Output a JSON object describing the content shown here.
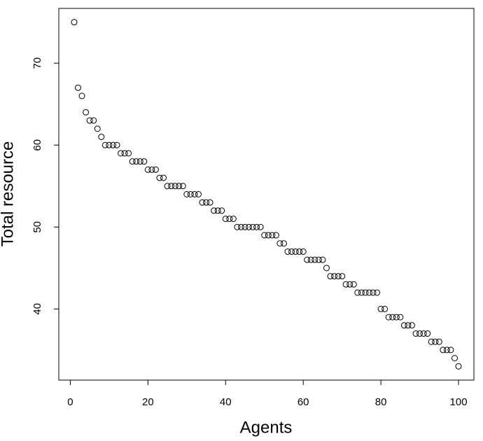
{
  "chart_data": {
    "type": "scatter",
    "x_label": "Agents",
    "y_label": "Total resource",
    "x": [
      1,
      2,
      3,
      4,
      5,
      6,
      7,
      8,
      9,
      10,
      11,
      12,
      13,
      14,
      15,
      16,
      17,
      18,
      19,
      20,
      21,
      22,
      23,
      24,
      25,
      26,
      27,
      28,
      29,
      30,
      31,
      32,
      33,
      34,
      35,
      36,
      37,
      38,
      39,
      40,
      41,
      42,
      43,
      44,
      45,
      46,
      47,
      48,
      49,
      50,
      51,
      52,
      53,
      54,
      55,
      56,
      57,
      58,
      59,
      60,
      61,
      62,
      63,
      64,
      65,
      66,
      67,
      68,
      69,
      70,
      71,
      72,
      73,
      74,
      75,
      76,
      77,
      78,
      79,
      80,
      81,
      82,
      83,
      84,
      85,
      86,
      87,
      88,
      89,
      90,
      91,
      92,
      93,
      94,
      95,
      96,
      97,
      98,
      99,
      100
    ],
    "values": [
      75,
      67,
      66,
      64,
      63,
      63,
      62,
      61,
      60,
      60,
      60,
      60,
      59,
      59,
      59,
      58,
      58,
      58,
      58,
      57,
      57,
      57,
      56,
      56,
      55,
      55,
      55,
      55,
      55,
      54,
      54,
      54,
      54,
      53,
      53,
      53,
      52,
      52,
      52,
      51,
      51,
      51,
      50,
      50,
      50,
      50,
      50,
      50,
      50,
      49,
      49,
      49,
      49,
      48,
      48,
      47,
      47,
      47,
      47,
      47,
      46,
      46,
      46,
      46,
      46,
      45,
      44,
      44,
      44,
      44,
      43,
      43,
      43,
      42,
      42,
      42,
      42,
      42,
      42,
      40,
      40,
      39,
      39,
      39,
      39,
      38,
      38,
      38,
      37,
      37,
      37,
      37,
      36,
      36,
      36,
      35,
      35,
      35,
      34,
      33
    ],
    "xlim": [
      -2.96,
      103.96
    ],
    "ylim": [
      31.32,
      76.68
    ],
    "xticks": [
      0,
      20,
      40,
      60,
      80,
      100
    ],
    "yticks": [
      40,
      50,
      60,
      70
    ],
    "color": "#000000",
    "grid": false
  }
}
